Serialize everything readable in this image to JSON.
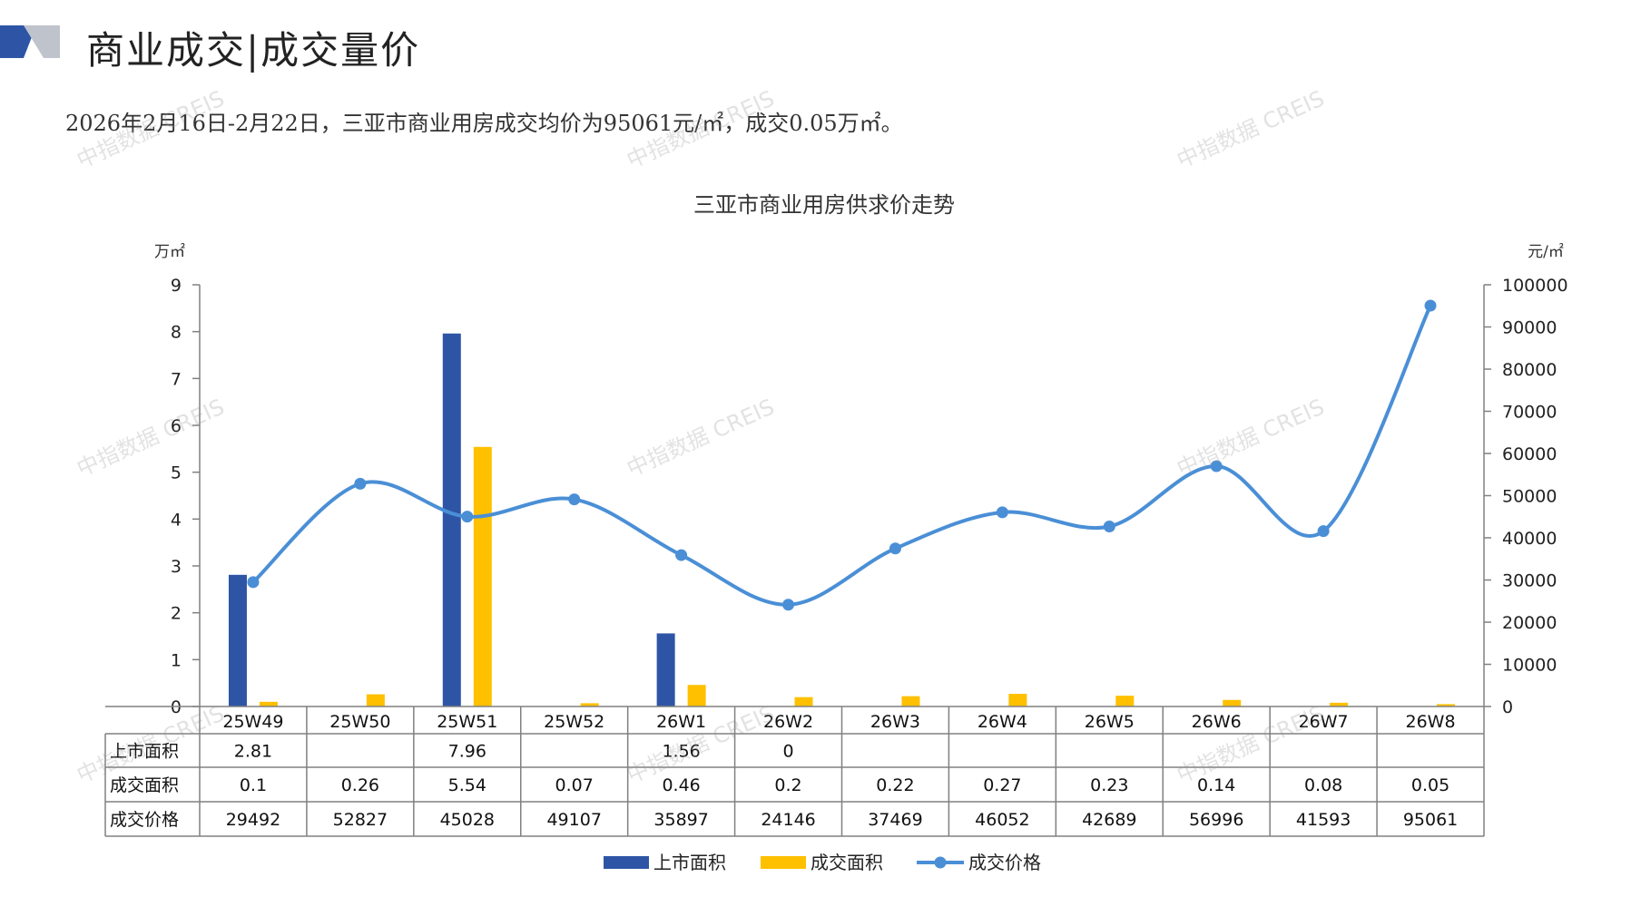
{
  "page": {
    "title": "商业成交|成交量价",
    "summary": "2026年2月16日-2月22日，三亚市商业用房成交均价为95061元/㎡，成交0.05万㎡。",
    "watermark": "中指数据 CREIS"
  },
  "colors": {
    "supply": "#2E55A5",
    "deal_area": "#FFC000",
    "price": "#4A8FD6",
    "deco_dark": "#2E55A5",
    "deco_light": "#BFC3CC"
  },
  "chart_data": {
    "type": "bar+line",
    "title": "三亚市商业用房供求价走势",
    "y_left_unit": "万㎡",
    "y_right_unit": "元/㎡",
    "y_left_ticks": [
      "0",
      "1",
      "2",
      "3",
      "4",
      "5",
      "6",
      "7",
      "8",
      "9"
    ],
    "y_right_ticks": [
      "0",
      "10000",
      "20000",
      "30000",
      "40000",
      "50000",
      "60000",
      "70000",
      "80000",
      "90000",
      "100000"
    ],
    "ylim_left": [
      0,
      9
    ],
    "ylim_right": [
      0,
      100000
    ],
    "categories": [
      "25W49",
      "25W50",
      "25W51",
      "25W52",
      "26W1",
      "26W2",
      "26W3",
      "26W4",
      "26W5",
      "26W6",
      "26W7",
      "26W8"
    ],
    "series": [
      {
        "name": "上市面积",
        "type": "bar",
        "axis": "left",
        "values": [
          2.81,
          null,
          7.96,
          null,
          1.56,
          0,
          null,
          null,
          null,
          null,
          null,
          null
        ],
        "labels": [
          "2.81",
          "",
          "7.96",
          "",
          "1.56",
          "0",
          "",
          "",
          "",
          "",
          "",
          ""
        ]
      },
      {
        "name": "成交面积",
        "type": "bar",
        "axis": "left",
        "values": [
          0.1,
          0.26,
          5.54,
          0.07,
          0.46,
          0.2,
          0.22,
          0.27,
          0.23,
          0.14,
          0.08,
          0.05
        ],
        "labels": [
          "0.1",
          "0.26",
          "5.54",
          "0.07",
          "0.46",
          "0.2",
          "0.22",
          "0.27",
          "0.23",
          "0.14",
          "0.08",
          "0.05"
        ]
      },
      {
        "name": "成交价格",
        "type": "line",
        "axis": "right",
        "values": [
          29492,
          52827,
          45028,
          49107,
          35897,
          24146,
          37469,
          46052,
          42689,
          56996,
          41593,
          95061
        ],
        "labels": [
          "29492",
          "52827",
          "45028",
          "49107",
          "35897",
          "24146",
          "37469",
          "46052",
          "42689",
          "56996",
          "41593",
          "95061"
        ]
      }
    ],
    "legend": {
      "position": "bottom",
      "items": [
        "上市面积",
        "成交面积",
        "成交价格"
      ]
    },
    "data_table": true
  }
}
